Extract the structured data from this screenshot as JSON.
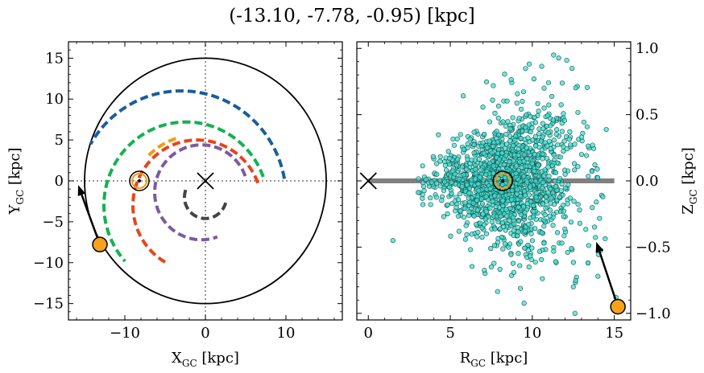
{
  "title": "(-13.10, -7.78, -0.95) [kpc]",
  "chart_data": [
    {
      "type": "line",
      "panel": "left",
      "xlabel": "X",
      "xlabel_sub": "GC",
      "xlabel_unit": " [kpc]",
      "ylabel": "Y",
      "ylabel_sub": "GC",
      "ylabel_unit": " [kpc]",
      "xlim": [
        -17,
        17
      ],
      "ylim": [
        -17,
        17
      ],
      "xticks": [
        -10,
        0,
        10
      ],
      "yticks": [
        -15,
        -10,
        -5,
        0,
        5,
        10,
        15
      ],
      "boundary_circle": {
        "center": [
          0,
          0
        ],
        "radius": 15
      },
      "galactic_center": [
        0,
        0
      ],
      "sun": [
        -8.2,
        0
      ],
      "star": {
        "x": -13.1,
        "y": -7.78
      },
      "velocity_arrow": {
        "from": [
          -13.1,
          -7.78
        ],
        "to": [
          -15.8,
          -0.5
        ]
      },
      "spiral_arms": [
        {
          "color": "#1b5e9b",
          "radius": 13.0,
          "center": [
            -3.0,
            -2.0
          ],
          "angle_start": 10,
          "angle_end": 150
        },
        {
          "color": "#13b24e",
          "radius": 10.2,
          "center": [
            -2.4,
            -3.0
          ],
          "angle_start": 20,
          "angle_end": 222
        },
        {
          "color": "#e8441c",
          "radius": 8.0,
          "center": [
            -1.0,
            -3.0
          ],
          "angle_start": 20,
          "angle_end": 240
        },
        {
          "color": "#7c5aa1",
          "radius": 5.8,
          "center": [
            -0.5,
            -1.4
          ],
          "angle_start": 20,
          "angle_end": 290
        },
        {
          "color": "#f29c11",
          "radius": 8.6,
          "center": [
            -1.0,
            -3.0
          ],
          "angle_start": 108,
          "angle_end": 135
        },
        {
          "color": "#444444",
          "radius": 2.6,
          "center": [
            0.0,
            -2.0
          ],
          "angle_start": 160,
          "angle_end": 345
        }
      ]
    },
    {
      "type": "scatter",
      "panel": "right",
      "xlabel": "R",
      "xlabel_sub": "GC",
      "xlabel_unit": " [kpc]",
      "ylabel": "Z",
      "ylabel_sub": "GC",
      "ylabel_unit": " [kpc]",
      "xlim": [
        -0.7,
        16
      ],
      "ylim": [
        -1.05,
        1.05
      ],
      "xticks": [
        0,
        5,
        10,
        15
      ],
      "yticks": [
        -1.0,
        -0.5,
        0.0,
        0.5,
        1.0
      ],
      "ytick_labels": [
        "−1.0",
        "−0.5",
        "0.0",
        "0.5",
        "1.0"
      ],
      "plane_line": {
        "x_start": 0,
        "x_end": 15,
        "z": 0
      },
      "galactic_center": [
        0,
        0
      ],
      "sun": [
        8.2,
        0
      ],
      "star": {
        "x": 15.22,
        "y": -0.95
      },
      "velocity_arrow": {
        "from": [
          15.22,
          -0.95
        ],
        "to": [
          13.9,
          -0.46
        ]
      },
      "point_color": "#40e0d0",
      "point_cloud": {
        "count": 1500,
        "center_r": 8.4,
        "sd_r": 2.1,
        "sd_z": 0.22,
        "z_scale_growth": 0.045
      },
      "sample_points": [
        [
          1.5,
          -0.45
        ],
        [
          11.3,
          0.95
        ],
        [
          12.1,
          0.91
        ],
        [
          10.1,
          0.77
        ],
        [
          13.0,
          0.33
        ],
        [
          14.3,
          -0.12
        ],
        [
          15.1,
          -0.88
        ],
        [
          12.6,
          -1.0
        ],
        [
          7.5,
          -0.65
        ],
        [
          9.8,
          -0.65
        ],
        [
          11.8,
          -0.47
        ],
        [
          13.4,
          -0.62
        ],
        [
          14.0,
          -0.72
        ],
        [
          12.5,
          -0.8
        ]
      ]
    }
  ]
}
